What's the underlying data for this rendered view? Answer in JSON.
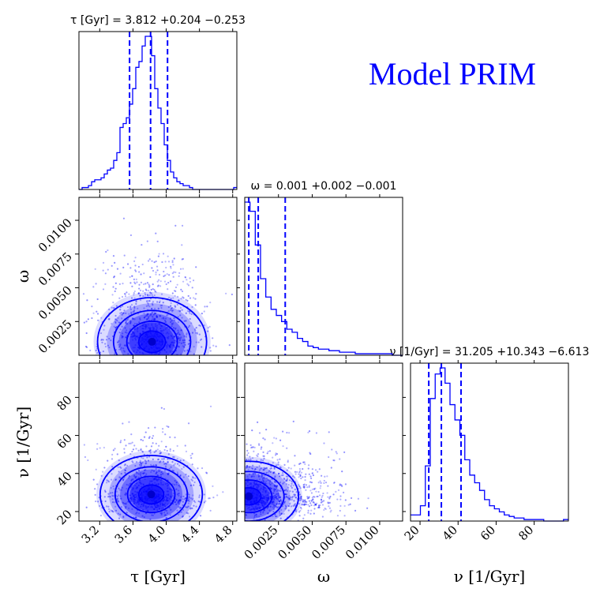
{
  "model_title": "Model PRIM",
  "colors": {
    "accent": "#0000ff",
    "axes": "#000000"
  },
  "chart_data": {
    "type": "corner",
    "parameters": [
      {
        "key": "tau",
        "symbol": "τ",
        "unit": "[Gyr]",
        "axis_label": "τ [Gyr]",
        "title": "τ [Gyr] = 3.812 +0.204 −0.253",
        "median": 3.812,
        "plus": 0.204,
        "minus": 0.253,
        "quantiles": [
          3.559,
          3.812,
          4.016
        ],
        "range": [
          2.95,
          4.85
        ],
        "ticks": [
          3.2,
          3.6,
          4.0,
          4.4,
          4.8
        ],
        "tick_labels": [
          "3.2",
          "3.6",
          "4.0",
          "4.4",
          "4.8"
        ],
        "hist_counts": [
          0,
          1,
          1,
          2,
          4,
          5,
          5,
          6,
          8,
          10,
          11,
          15,
          19,
          32,
          34,
          37,
          44,
          52,
          63,
          66,
          74,
          79,
          79,
          69,
          52,
          42,
          34,
          23,
          15,
          9,
          6,
          4,
          3,
          2,
          2,
          1,
          0,
          0,
          0,
          0,
          0,
          0,
          0,
          0,
          0,
          0,
          0,
          0,
          0,
          1
        ]
      },
      {
        "key": "omega",
        "symbol": "ω",
        "unit": "",
        "axis_label": "ω",
        "title": "ω = 0.001 +0.002 −0.001",
        "median": 0.001,
        "plus": 0.002,
        "minus": 0.001,
        "quantiles": [
          0.0003,
          0.001,
          0.003
        ],
        "range": [
          0.0,
          0.0117
        ],
        "ticks": [
          0.0025,
          0.005,
          0.0075,
          0.01
        ],
        "tick_labels": [
          "0.0025",
          "0.0050",
          "0.0075",
          "0.0100"
        ],
        "hist_counts": [
          100,
          94,
          72,
          50,
          38,
          30,
          26,
          22,
          17,
          15,
          11,
          9,
          6,
          5,
          4,
          4,
          3,
          3,
          2,
          2,
          2,
          1,
          1,
          1,
          1,
          1,
          1,
          1,
          0,
          0
        ]
      },
      {
        "key": "nu",
        "symbol": "ν",
        "unit": "[1/Gyr]",
        "axis_label": "ν [1/Gyr]",
        "title": "ν [1/Gyr] = 31.205 +10.343 −6.613",
        "median": 31.205,
        "plus": 10.343,
        "minus": 6.613,
        "quantiles": [
          24.592,
          31.205,
          41.548
        ],
        "range": [
          15,
          98
        ],
        "ticks": [
          20,
          40,
          60,
          80
        ],
        "tick_labels": [
          "20",
          "40",
          "60",
          "80"
        ],
        "hist_counts": [
          4,
          4,
          10,
          36,
          80,
          96,
          100,
          90,
          76,
          66,
          56,
          40,
          30,
          25,
          20,
          14,
          10,
          8,
          6,
          4,
          3,
          2,
          2,
          1,
          1,
          1,
          1,
          0,
          0,
          0,
          0,
          1
        ]
      }
    ],
    "pairs": [
      {
        "x": "tau",
        "y": "omega",
        "center": [
          3.83,
          0.001
        ],
        "spread": [
          0.32,
          0.0016
        ]
      },
      {
        "x": "tau",
        "y": "nu",
        "center": [
          3.82,
          29.0
        ],
        "spread": [
          0.3,
          10.0
        ]
      },
      {
        "x": "omega",
        "y": "nu",
        "center": [
          0.0003,
          28.0
        ],
        "spread": [
          0.0018,
          9.0
        ]
      }
    ]
  }
}
